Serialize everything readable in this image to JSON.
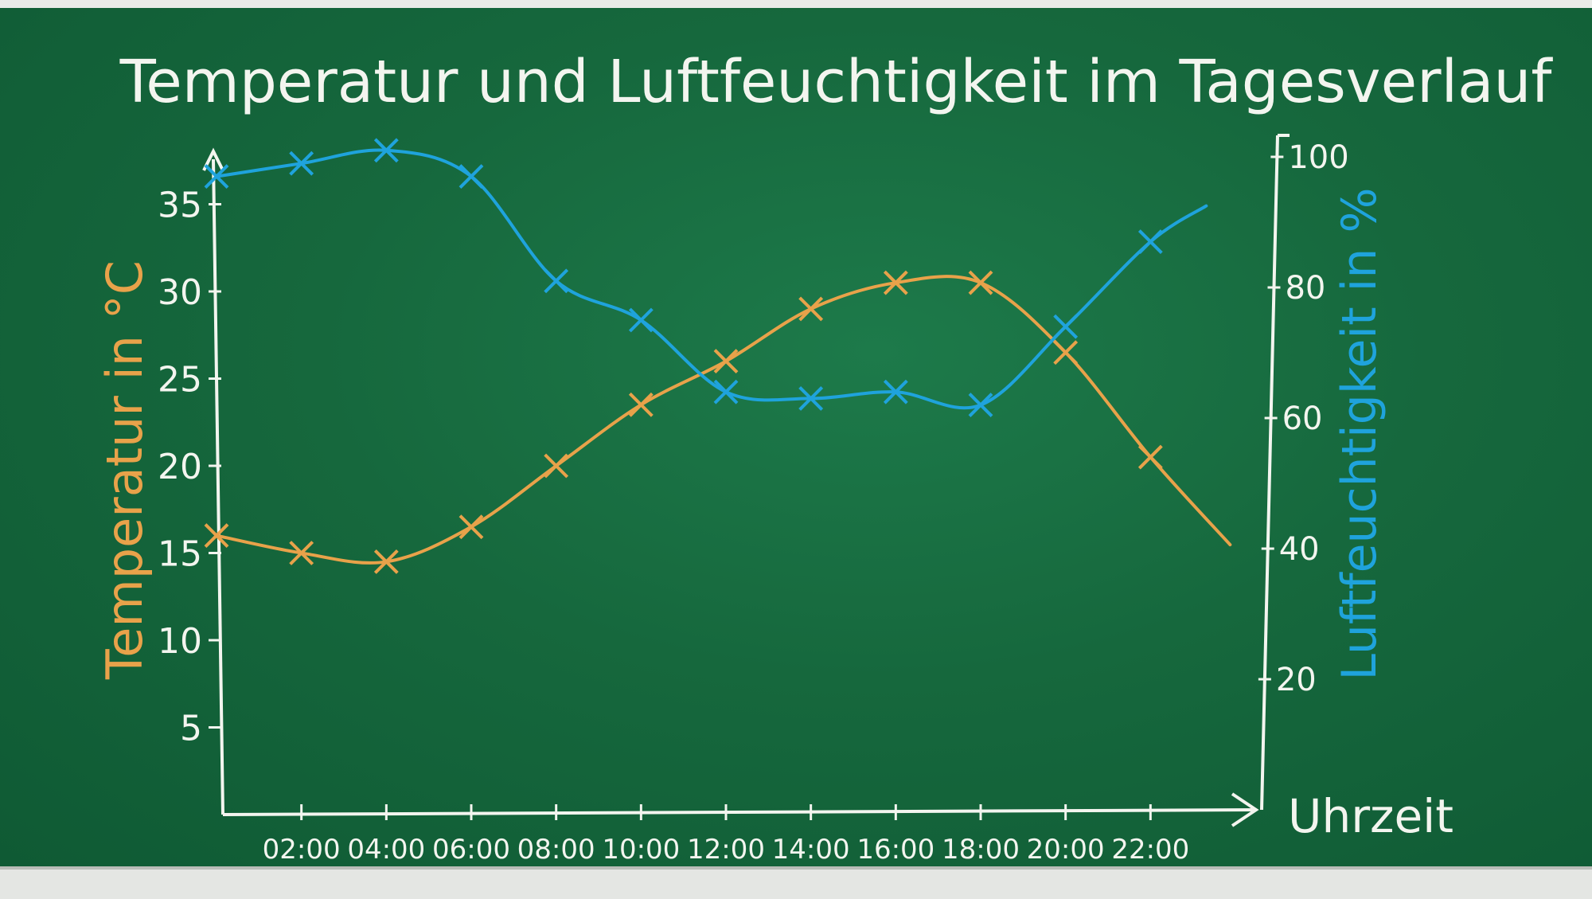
{
  "chart_data": {
    "type": "line",
    "title": "Temperatur und Luftfeuchtigkeit im Tagesverlauf",
    "xlabel": "Uhrzeit",
    "ylabel_left": "Temperatur in °C",
    "ylabel_right": "Luftfeuchtigkeit in %",
    "x_ticks": [
      "02:00",
      "04:00",
      "06:00",
      "08:00",
      "10:00",
      "12:00",
      "14:00",
      "16:00",
      "18:00",
      "20:00",
      "22:00"
    ],
    "y_left_ticks": [
      5,
      10,
      15,
      20,
      25,
      30,
      35
    ],
    "y_right_ticks": [
      20,
      40,
      60,
      80,
      100
    ],
    "y_left_lim": [
      0,
      38
    ],
    "y_right_lim": [
      0,
      100
    ],
    "x_lim": [
      0,
      24
    ],
    "grid": false,
    "series": [
      {
        "name": "Temperatur",
        "axis": "left",
        "color": "#e8a24a",
        "x": [
          0,
          2,
          4,
          6,
          8,
          10,
          12,
          14,
          16,
          18,
          20,
          22
        ],
        "y": [
          16,
          15,
          14.5,
          16.5,
          20,
          23.5,
          26,
          29,
          30.5,
          30.5,
          26.5,
          20.5
        ]
      },
      {
        "name": "Luftfeuchtigkeit",
        "axis": "right",
        "color": "#1fa3dc",
        "x": [
          0,
          2,
          4,
          6,
          8,
          10,
          12,
          14,
          16,
          18,
          20,
          22
        ],
        "y": [
          97,
          99,
          101,
          97,
          81,
          75,
          64,
          63,
          64,
          62,
          74,
          87
        ]
      }
    ]
  }
}
